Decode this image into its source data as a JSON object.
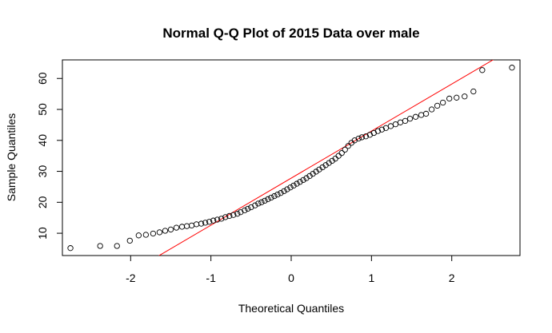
{
  "chart_data": {
    "type": "scatter",
    "title": "Normal Q-Q Plot of 2015 Data over male",
    "xlabel": "Theoretical Quantiles",
    "ylabel": "Sample Quantiles",
    "xlim": [
      -2.85,
      2.85
    ],
    "ylim": [
      2.8,
      66.0
    ],
    "x_ticks": [
      -2,
      -1,
      0,
      1,
      2
    ],
    "x_tick_labels": [
      "-2",
      "-1",
      "0",
      "1",
      "2"
    ],
    "y_ticks": [
      10,
      20,
      30,
      40,
      50,
      60
    ],
    "y_tick_labels": [
      "10",
      "20",
      "30",
      "40",
      "50",
      "60"
    ],
    "grid": false,
    "colors": {
      "points": "#000000",
      "reference_line": "#ff0000",
      "frame": "#000000"
    },
    "reference_line": {
      "intercept": 27.8,
      "slope": 15.2
    },
    "points": [
      {
        "x": -2.75,
        "y": 5.2
      },
      {
        "x": -2.38,
        "y": 5.9
      },
      {
        "x": -2.17,
        "y": 5.9
      },
      {
        "x": -2.01,
        "y": 7.6
      },
      {
        "x": -1.9,
        "y": 9.3
      },
      {
        "x": -1.81,
        "y": 9.5
      },
      {
        "x": -1.72,
        "y": 9.9
      },
      {
        "x": -1.64,
        "y": 10.3
      },
      {
        "x": -1.57,
        "y": 10.8
      },
      {
        "x": -1.5,
        "y": 11.2
      },
      {
        "x": -1.43,
        "y": 11.8
      },
      {
        "x": -1.36,
        "y": 12.1
      },
      {
        "x": -1.3,
        "y": 12.3
      },
      {
        "x": -1.24,
        "y": 12.5
      },
      {
        "x": -1.18,
        "y": 12.9
      },
      {
        "x": -1.12,
        "y": 13.1
      },
      {
        "x": -1.07,
        "y": 13.4
      },
      {
        "x": -1.02,
        "y": 13.7
      },
      {
        "x": -0.97,
        "y": 14.1
      },
      {
        "x": -0.92,
        "y": 14.4
      },
      {
        "x": -0.87,
        "y": 14.7
      },
      {
        "x": -0.82,
        "y": 15.2
      },
      {
        "x": -0.77,
        "y": 15.6
      },
      {
        "x": -0.72,
        "y": 15.9
      },
      {
        "x": -0.67,
        "y": 16.3
      },
      {
        "x": -0.63,
        "y": 16.8
      },
      {
        "x": -0.58,
        "y": 17.4
      },
      {
        "x": -0.54,
        "y": 17.9
      },
      {
        "x": -0.5,
        "y": 18.4
      },
      {
        "x": -0.45,
        "y": 19.0
      },
      {
        "x": -0.41,
        "y": 19.6
      },
      {
        "x": -0.37,
        "y": 20.0
      },
      {
        "x": -0.33,
        "y": 20.5
      },
      {
        "x": -0.29,
        "y": 21.0
      },
      {
        "x": -0.25,
        "y": 21.5
      },
      {
        "x": -0.21,
        "y": 22.0
      },
      {
        "x": -0.17,
        "y": 22.5
      },
      {
        "x": -0.13,
        "y": 23.0
      },
      {
        "x": -0.09,
        "y": 23.6
      },
      {
        "x": -0.05,
        "y": 24.2
      },
      {
        "x": -0.01,
        "y": 24.8
      },
      {
        "x": 0.03,
        "y": 25.4
      },
      {
        "x": 0.07,
        "y": 26.0
      },
      {
        "x": 0.11,
        "y": 26.6
      },
      {
        "x": 0.15,
        "y": 27.2
      },
      {
        "x": 0.19,
        "y": 27.8
      },
      {
        "x": 0.23,
        "y": 28.5
      },
      {
        "x": 0.27,
        "y": 29.2
      },
      {
        "x": 0.31,
        "y": 29.9
      },
      {
        "x": 0.35,
        "y": 30.6
      },
      {
        "x": 0.39,
        "y": 31.3
      },
      {
        "x": 0.43,
        "y": 32.0
      },
      {
        "x": 0.47,
        "y": 32.7
      },
      {
        "x": 0.51,
        "y": 33.4
      },
      {
        "x": 0.55,
        "y": 34.1
      },
      {
        "x": 0.59,
        "y": 35.0
      },
      {
        "x": 0.63,
        "y": 35.9
      },
      {
        "x": 0.67,
        "y": 37.0
      },
      {
        "x": 0.71,
        "y": 38.2
      },
      {
        "x": 0.75,
        "y": 39.2
      },
      {
        "x": 0.79,
        "y": 40.0
      },
      {
        "x": 0.84,
        "y": 40.6
      },
      {
        "x": 0.88,
        "y": 41.0
      },
      {
        "x": 0.93,
        "y": 41.3
      },
      {
        "x": 0.98,
        "y": 41.8
      },
      {
        "x": 1.03,
        "y": 42.4
      },
      {
        "x": 1.08,
        "y": 43.0
      },
      {
        "x": 1.13,
        "y": 43.5
      },
      {
        "x": 1.18,
        "y": 44.0
      },
      {
        "x": 1.24,
        "y": 44.6
      },
      {
        "x": 1.3,
        "y": 45.2
      },
      {
        "x": 1.36,
        "y": 45.8
      },
      {
        "x": 1.42,
        "y": 46.3
      },
      {
        "x": 1.48,
        "y": 47.0
      },
      {
        "x": 1.55,
        "y": 47.6
      },
      {
        "x": 1.62,
        "y": 48.2
      },
      {
        "x": 1.68,
        "y": 48.6
      },
      {
        "x": 1.75,
        "y": 50.0
      },
      {
        "x": 1.82,
        "y": 51.2
      },
      {
        "x": 1.89,
        "y": 52.2
      },
      {
        "x": 1.97,
        "y": 53.5
      },
      {
        "x": 2.06,
        "y": 53.8
      },
      {
        "x": 2.16,
        "y": 54.2
      },
      {
        "x": 2.27,
        "y": 55.8
      },
      {
        "x": 2.38,
        "y": 62.7
      },
      {
        "x": 2.75,
        "y": 63.5
      }
    ]
  }
}
